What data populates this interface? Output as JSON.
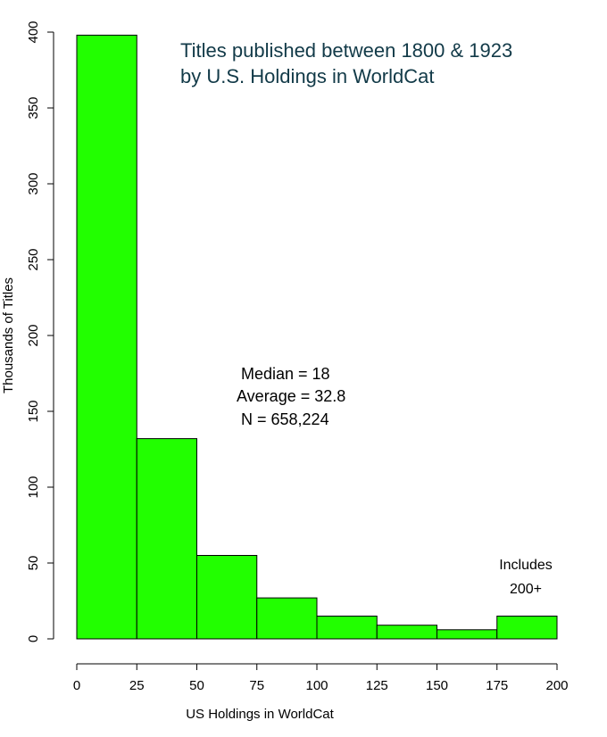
{
  "chart_data": {
    "type": "bar",
    "title_lines": [
      "Titles published between 1800 & 1923",
      "by U.S. Holdings in WorldCat"
    ],
    "xlabel": "US Holdings in WorldCat",
    "ylabel": "Thousands of Titles",
    "x_bins": [
      [
        0,
        25
      ],
      [
        25,
        50
      ],
      [
        50,
        75
      ],
      [
        75,
        100
      ],
      [
        100,
        125
      ],
      [
        125,
        150
      ],
      [
        150,
        175
      ],
      [
        175,
        200
      ]
    ],
    "values": [
      398,
      132,
      55,
      27,
      15,
      9,
      6,
      15
    ],
    "xlim": [
      0,
      200
    ],
    "ylim": [
      0,
      400
    ],
    "x_ticks": [
      "0",
      "25",
      "50",
      "75",
      "100",
      "125",
      "150",
      "175",
      "200"
    ],
    "y_ticks": [
      "0",
      "50",
      "100",
      "150",
      "200",
      "250",
      "300",
      "350",
      "400"
    ],
    "annotations": [
      "Median = 18",
      "Average = 32.8",
      "N = 658,224"
    ],
    "last_bin_note": [
      "Includes",
      "200+"
    ],
    "grid": false,
    "colors": {
      "bar_fill": "#22ff00",
      "title": "#123a48"
    }
  }
}
